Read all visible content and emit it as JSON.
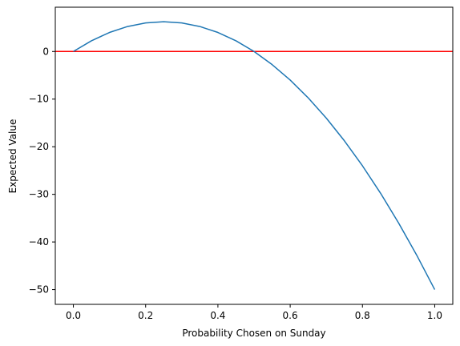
{
  "chart_data": {
    "type": "line",
    "title": "",
    "xlabel": "Probability Chosen on Sunday",
    "ylabel": "Expected Value",
    "xlim": [
      -0.05,
      1.05
    ],
    "ylim": [
      -53.1,
      9.3
    ],
    "grid": false,
    "x_ticks": [
      0.0,
      0.2,
      0.4,
      0.6,
      0.8,
      1.0
    ],
    "x_tick_labels": [
      "0.0",
      "0.2",
      "0.4",
      "0.6",
      "0.8",
      "1.0"
    ],
    "y_ticks": [
      0,
      -10,
      -20,
      -30,
      -40,
      -50
    ],
    "y_tick_labels": [
      "0",
      "−10",
      "−20",
      "−30",
      "−40",
      "−50"
    ],
    "series": [
      {
        "color": "#1f77b4",
        "x": [
          0.0,
          0.05,
          0.1,
          0.15,
          0.2,
          0.25,
          0.3,
          0.35,
          0.4,
          0.45,
          0.5,
          0.55,
          0.6,
          0.65,
          0.7,
          0.75,
          0.8,
          0.85,
          0.9,
          0.95,
          1.0
        ],
        "y": [
          0.0,
          2.25,
          4.0,
          5.25,
          6.0,
          6.25,
          6.0,
          5.25,
          4.0,
          2.25,
          0.0,
          -2.75,
          -6.0,
          -9.75,
          -14.0,
          -18.75,
          -24.0,
          -29.75,
          -36.0,
          -42.75,
          -50.0
        ]
      }
    ],
    "reference_lines": [
      {
        "orientation": "horizontal",
        "y": 0,
        "color": "#ff0000"
      }
    ]
  }
}
